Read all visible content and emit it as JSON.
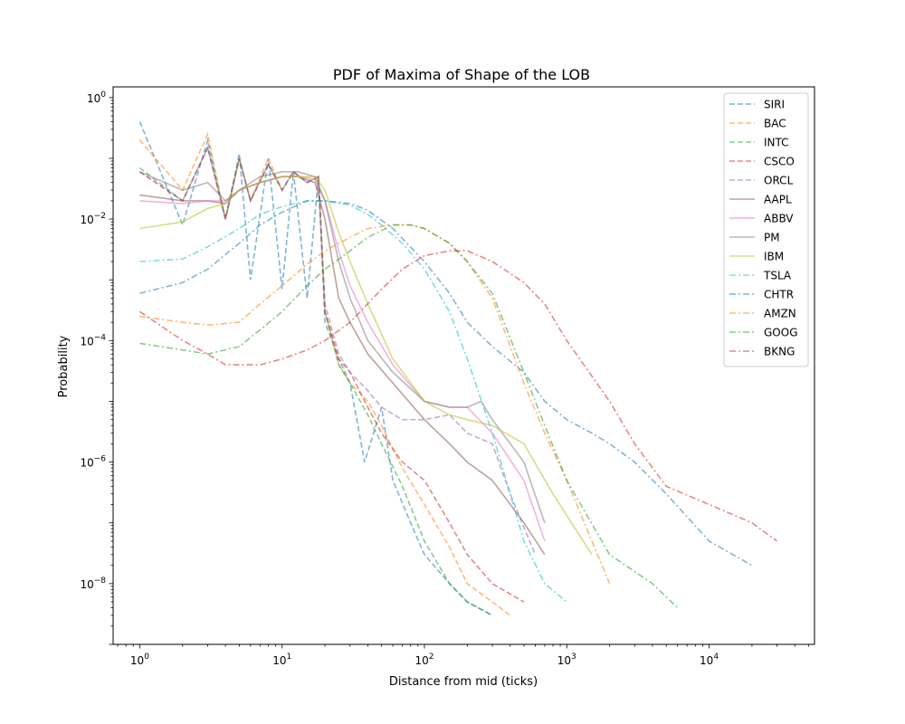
{
  "chart_data": {
    "type": "line",
    "title": "PDF of Maxima of Shape of the LOB",
    "xlabel": "Distance from mid (ticks)",
    "ylabel": "Probability",
    "xscale": "log",
    "yscale": "log",
    "xlim": [
      0.65,
      55000
    ],
    "ylim": [
      1e-09,
      1.5
    ],
    "xticks": [
      {
        "value": 1,
        "base": "10",
        "exp": "0"
      },
      {
        "value": 10,
        "base": "10",
        "exp": "1"
      },
      {
        "value": 100,
        "base": "10",
        "exp": "2"
      },
      {
        "value": 1000,
        "base": "10",
        "exp": "3"
      },
      {
        "value": 10000,
        "base": "10",
        "exp": "4"
      }
    ],
    "yticks": [
      {
        "value": 1,
        "base": "10",
        "exp": "0"
      },
      {
        "value": 0.01,
        "base": "10",
        "exp": "−2"
      },
      {
        "value": 0.0001,
        "base": "10",
        "exp": "−4"
      },
      {
        "value": 1e-06,
        "base": "10",
        "exp": "−6"
      },
      {
        "value": 1e-08,
        "base": "10",
        "exp": "−8"
      }
    ],
    "legend_position": "top-right",
    "series": [
      {
        "name": "SIRI",
        "color": "#1f77b4",
        "style": "dashed",
        "x": [
          1,
          2,
          3,
          4,
          5,
          6,
          8,
          10,
          12,
          15,
          18,
          20,
          25,
          30,
          38,
          50,
          60,
          80,
          100,
          150,
          200,
          300
        ],
        "y": [
          0.4,
          0.008,
          0.2,
          0.01,
          0.12,
          0.001,
          0.1,
          0.0007,
          0.06,
          0.0005,
          0.05,
          0.0002,
          5e-05,
          2e-05,
          1e-06,
          8e-06,
          5e-07,
          1e-07,
          3e-08,
          1e-08,
          5e-09,
          3e-09
        ]
      },
      {
        "name": "BAC",
        "color": "#ff7f0e",
        "style": "dashed",
        "x": [
          1,
          2,
          3,
          4,
          5,
          6,
          8,
          10,
          12,
          15,
          18,
          20,
          25,
          30,
          40,
          50,
          70,
          100,
          150,
          200,
          300,
          400
        ],
        "y": [
          0.2,
          0.03,
          0.25,
          0.01,
          0.1,
          0.02,
          0.1,
          0.03,
          0.06,
          0.04,
          0.05,
          0.0003,
          4e-05,
          2e-05,
          1e-05,
          4e-06,
          8e-07,
          2e-07,
          4e-08,
          1e-08,
          5e-09,
          3e-09
        ]
      },
      {
        "name": "INTC",
        "color": "#2ca02c",
        "style": "dashed",
        "x": [
          1,
          2,
          3,
          4,
          5,
          6,
          8,
          10,
          12,
          15,
          18,
          20,
          25,
          30,
          40,
          50,
          70,
          100,
          150,
          200,
          300
        ],
        "y": [
          0.07,
          0.02,
          0.15,
          0.01,
          0.1,
          0.02,
          0.08,
          0.03,
          0.06,
          0.04,
          0.05,
          0.0003,
          4e-05,
          2e-05,
          6e-06,
          2e-06,
          4e-07,
          5e-08,
          1e-08,
          5e-09,
          3e-09
        ]
      },
      {
        "name": "CSCO",
        "color": "#d62728",
        "style": "dashed",
        "x": [
          1,
          2,
          3,
          4,
          5,
          6,
          8,
          10,
          12,
          15,
          18,
          20,
          25,
          30,
          40,
          50,
          70,
          100,
          150,
          200,
          300,
          500
        ],
        "y": [
          0.06,
          0.02,
          0.15,
          0.01,
          0.1,
          0.02,
          0.08,
          0.03,
          0.06,
          0.04,
          0.05,
          0.0003,
          5e-05,
          3e-05,
          8e-06,
          3e-06,
          1e-06,
          5e-07,
          1e-07,
          3e-08,
          1e-08,
          5e-09
        ]
      },
      {
        "name": "ORCL",
        "color": "#9467bd",
        "style": "dashed",
        "x": [
          1,
          2,
          3,
          4,
          5,
          6,
          8,
          10,
          12,
          15,
          18,
          20,
          25,
          30,
          40,
          50,
          70,
          100,
          150,
          200,
          300,
          400,
          600
        ],
        "y": [
          0.06,
          0.02,
          0.15,
          0.01,
          0.1,
          0.02,
          0.08,
          0.03,
          0.06,
          0.04,
          0.05,
          0.0004,
          6e-05,
          3e-05,
          1.5e-05,
          8e-06,
          5e-06,
          5e-06,
          6e-06,
          3e-06,
          2e-06,
          3e-07,
          3e-08
        ]
      },
      {
        "name": "AAPL",
        "color": "#8c564b",
        "style": "solid",
        "x": [
          1,
          2,
          3,
          4,
          5,
          7,
          10,
          13,
          17,
          20,
          25,
          30,
          40,
          60,
          100,
          150,
          200,
          300,
          500,
          700
        ],
        "y": [
          0.025,
          0.02,
          0.02,
          0.018,
          0.03,
          0.04,
          0.05,
          0.05,
          0.04,
          0.01,
          0.0005,
          0.0002,
          6e-05,
          2e-05,
          5e-06,
          2e-06,
          1e-06,
          5e-07,
          1e-07,
          3e-08
        ]
      },
      {
        "name": "ABBV",
        "color": "#e377c2",
        "style": "solid",
        "x": [
          1,
          2,
          3,
          4,
          5,
          7,
          10,
          13,
          17,
          20,
          25,
          30,
          40,
          60,
          100,
          150,
          200,
          300,
          500,
          700
        ],
        "y": [
          0.02,
          0.018,
          0.02,
          0.02,
          0.03,
          0.04,
          0.05,
          0.05,
          0.045,
          0.02,
          0.003,
          0.0008,
          0.0002,
          4e-05,
          1e-05,
          8e-06,
          8e-06,
          3e-06,
          5e-07,
          5e-08
        ]
      },
      {
        "name": "PM",
        "color": "#7f7f7f",
        "style": "solid",
        "x": [
          1,
          2,
          3,
          4,
          5,
          7,
          10,
          13,
          17,
          20,
          25,
          30,
          40,
          60,
          100,
          150,
          200,
          250,
          300,
          500,
          700
        ],
        "y": [
          0.06,
          0.03,
          0.04,
          0.02,
          0.03,
          0.05,
          0.06,
          0.06,
          0.05,
          0.02,
          0.002,
          0.0005,
          0.0001,
          3e-05,
          1e-05,
          8e-06,
          8e-06,
          1e-05,
          5e-06,
          1e-06,
          1e-07
        ]
      },
      {
        "name": "IBM",
        "color": "#bcbd22",
        "style": "solid",
        "x": [
          1,
          2,
          3,
          4,
          5,
          7,
          10,
          13,
          17,
          20,
          25,
          30,
          40,
          60,
          100,
          150,
          200,
          300,
          500,
          800,
          1500
        ],
        "y": [
          0.007,
          0.009,
          0.015,
          0.018,
          0.03,
          0.04,
          0.05,
          0.05,
          0.05,
          0.03,
          0.006,
          0.002,
          0.0004,
          5e-05,
          1e-05,
          6e-06,
          5e-06,
          4e-06,
          2e-06,
          3e-07,
          3e-08
        ]
      },
      {
        "name": "TSLA",
        "color": "#17becf",
        "style": "dashdot",
        "x": [
          1,
          2,
          3,
          5,
          7,
          10,
          15,
          20,
          30,
          40,
          50,
          70,
          100,
          150,
          200,
          300,
          400,
          500,
          700,
          1000
        ],
        "y": [
          0.002,
          0.0022,
          0.0035,
          0.007,
          0.012,
          0.016,
          0.02,
          0.02,
          0.017,
          0.012,
          0.008,
          0.004,
          0.0015,
          0.0003,
          5e-05,
          3e-06,
          3e-07,
          5e-08,
          1e-08,
          5e-09
        ]
      },
      {
        "name": "CHTR",
        "color": "#1f77b4",
        "style": "dashdot",
        "x": [
          1,
          2,
          3,
          5,
          7,
          10,
          15,
          20,
          30,
          40,
          60,
          100,
          150,
          200,
          300,
          500,
          700,
          1000,
          1500,
          2000,
          3000,
          5000,
          10000,
          20000
        ],
        "y": [
          0.0006,
          0.0009,
          0.0015,
          0.004,
          0.008,
          0.013,
          0.02,
          0.02,
          0.018,
          0.014,
          0.007,
          0.002,
          0.0006,
          0.0002,
          8e-05,
          3e-05,
          1e-05,
          5e-06,
          3e-06,
          2e-06,
          1e-06,
          3e-07,
          5e-08,
          2e-08
        ]
      },
      {
        "name": "AMZN",
        "color": "#ff7f0e",
        "style": "dashdot",
        "x": [
          1,
          2,
          3,
          5,
          7,
          10,
          15,
          20,
          30,
          40,
          60,
          80,
          100,
          150,
          200,
          300,
          500,
          700,
          1000,
          1500,
          2000
        ],
        "y": [
          0.00025,
          0.0002,
          0.00018,
          0.0002,
          0.0004,
          0.0008,
          0.0018,
          0.003,
          0.005,
          0.007,
          0.008,
          0.008,
          0.007,
          0.004,
          0.002,
          0.0005,
          2e-05,
          3e-06,
          5e-07,
          5e-08,
          1e-08
        ]
      },
      {
        "name": "GOOG",
        "color": "#2ca02c",
        "style": "dashdot",
        "x": [
          1,
          2,
          3,
          5,
          7,
          10,
          15,
          20,
          30,
          40,
          60,
          80,
          100,
          150,
          200,
          300,
          500,
          700,
          1000,
          2000,
          4000,
          6000
        ],
        "y": [
          9e-05,
          7e-05,
          6e-05,
          8e-05,
          0.00015,
          0.0003,
          0.0008,
          0.0015,
          0.003,
          0.005,
          0.008,
          0.008,
          0.007,
          0.004,
          0.002,
          0.0006,
          3e-05,
          4e-06,
          5e-07,
          3e-08,
          1e-08,
          4e-09
        ]
      },
      {
        "name": "BKNG",
        "color": "#d62728",
        "style": "dashdot",
        "x": [
          1,
          2,
          3,
          4,
          5,
          7,
          10,
          15,
          20,
          30,
          50,
          70,
          100,
          150,
          200,
          300,
          500,
          700,
          1000,
          2000,
          3000,
          5000,
          10000,
          20000,
          30000
        ],
        "y": [
          0.0003,
          0.0001,
          6e-05,
          4e-05,
          4e-05,
          4e-05,
          5e-05,
          7e-05,
          0.0001,
          0.0002,
          0.0007,
          0.0015,
          0.0025,
          0.003,
          0.003,
          0.002,
          0.0009,
          0.0004,
          0.0001,
          1e-05,
          2e-06,
          4e-07,
          2e-07,
          1e-07,
          5e-08
        ]
      }
    ]
  }
}
